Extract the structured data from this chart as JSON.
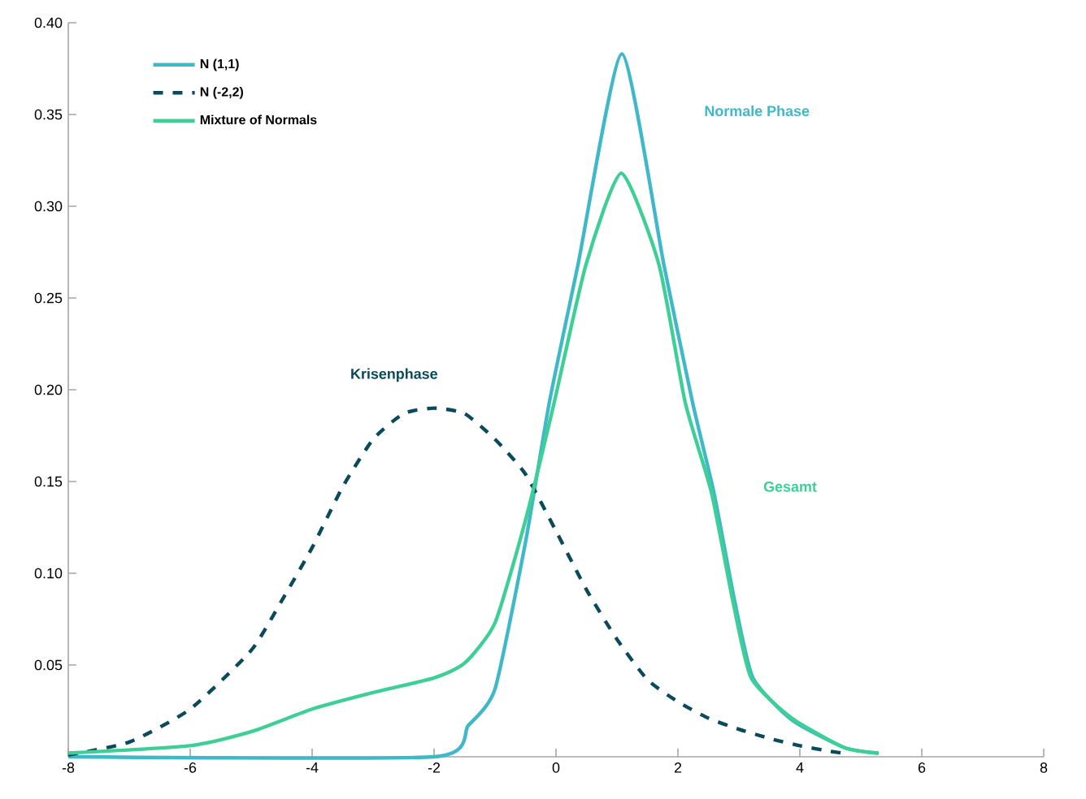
{
  "chart_data": {
    "type": "line",
    "xlim": [
      -8,
      8
    ],
    "ylim": [
      0,
      0.4
    ],
    "xticks": [
      -8,
      -6,
      -4,
      -2,
      0,
      2,
      4,
      6,
      8
    ],
    "yticks": [
      {
        "value": 0.05,
        "label": "0.05"
      },
      {
        "value": 0.1,
        "label": "0.10"
      },
      {
        "value": 0.15,
        "label": "0.15"
      },
      {
        "value": 0.2,
        "label": "0.20"
      },
      {
        "value": 0.25,
        "label": "0.25"
      },
      {
        "value": 0.3,
        "label": "0.30"
      },
      {
        "value": 0.35,
        "label": "0.35"
      },
      {
        "value": 0.4,
        "label": "0.40"
      }
    ],
    "legend": "top left",
    "marker": "none",
    "series": [
      {
        "name": "N (1,1)",
        "color": "#3fb8c8",
        "line_style": "solid",
        "x": [
          -8,
          -2,
          -1.44,
          -1,
          -0.5,
          -0.11,
          0.36,
          1.08,
          1.77,
          2.24,
          2.59,
          2.93,
          3.23,
          3.87,
          4.73,
          5.29
        ],
        "values": [
          0,
          0,
          0.017,
          0.037,
          0.117,
          0.193,
          0.268,
          0.383,
          0.268,
          0.193,
          0.144,
          0.085,
          0.043,
          0.02,
          0.005,
          0.002
        ]
      },
      {
        "name": "N (-2,2)",
        "color": "#0b4a5a",
        "line_style": "dashed",
        "x": [
          -8,
          -7,
          -6,
          -5,
          -4.5,
          -4,
          -3.5,
          -3,
          -2.5,
          -2,
          -1.5,
          -1,
          -0.5,
          0,
          0.5,
          1,
          1.5,
          2,
          2.5,
          3,
          3.5,
          4,
          4.5,
          4.7
        ],
        "values": [
          0.001,
          0.008,
          0.026,
          0.058,
          0.085,
          0.114,
          0.147,
          0.173,
          0.187,
          0.19,
          0.187,
          0.173,
          0.154,
          0.123,
          0.091,
          0.064,
          0.042,
          0.03,
          0.021,
          0.015,
          0.01,
          0.006,
          0.003,
          0.002
        ]
      },
      {
        "name": "Mixture of Normals",
        "color": "#3ecf96",
        "line_style": "solid",
        "x": [
          -8,
          -6,
          -4.97,
          -4,
          -3,
          -2,
          -1.5,
          -1,
          -0.5,
          -0.03,
          0.49,
          1.07,
          1.69,
          2.12,
          2.55,
          2.9,
          3.2,
          3.87,
          4.73,
          5.29
        ],
        "values": [
          0.002,
          0.006,
          0.014,
          0.026,
          0.035,
          0.043,
          0.051,
          0.073,
          0.129,
          0.193,
          0.268,
          0.318,
          0.268,
          0.193,
          0.144,
          0.085,
          0.043,
          0.021,
          0.005,
          0.002
        ]
      }
    ],
    "annotations": [
      "Normale Phase",
      "Krisenphase",
      "Gesamt"
    ]
  }
}
